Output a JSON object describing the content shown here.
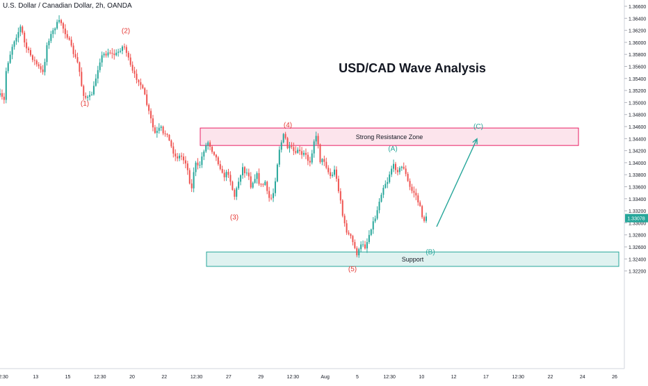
{
  "header": {
    "symbol": "U.S. Dollar / Canadian Dollar, 2h, OANDA"
  },
  "colors": {
    "up": "#26a69a",
    "down": "#ef5350",
    "resistance": "#e91e63",
    "support": "#26a69a",
    "price_tag": "#26a69a",
    "wave_red": "#e53935",
    "wave_green": "#26a69a"
  },
  "chart_data": {
    "type": "candlestick",
    "title": "USD/CAD Wave Analysis",
    "ylim": [
      1.3215,
      1.3668
    ],
    "y_ticks": [
      "1.36600",
      "1.36400",
      "1.36200",
      "1.36000",
      "1.35800",
      "1.35600",
      "1.35400",
      "1.35200",
      "1.35000",
      "1.34800",
      "1.34600",
      "1.34400",
      "1.34200",
      "1.34000",
      "1.33800",
      "1.33600",
      "1.33400",
      "1.33200",
      "1.33000",
      "1.32800",
      "1.32600",
      "1.32400",
      "1.32200"
    ],
    "x_ticks": [
      "2:30",
      "13",
      "15",
      "12:30",
      "20",
      "22",
      "12:30",
      "27",
      "29",
      "12:30",
      "Aug",
      "5",
      "12:30",
      "10",
      "12",
      "17",
      "12:30",
      "22",
      "24",
      "26"
    ],
    "last_price": "1.33078",
    "price_path": [
      [
        0,
        1.3512
      ],
      [
        6,
        1.3503
      ],
      [
        9,
        1.3556
      ],
      [
        14,
        1.3578
      ],
      [
        19,
        1.36
      ],
      [
        25,
        1.3614
      ],
      [
        30,
        1.3627
      ],
      [
        36,
        1.3595
      ],
      [
        42,
        1.3582
      ],
      [
        49,
        1.357
      ],
      [
        55,
        1.356
      ],
      [
        62,
        1.3548
      ],
      [
        68,
        1.36
      ],
      [
        75,
        1.3616
      ],
      [
        81,
        1.363
      ],
      [
        87,
        1.3636
      ],
      [
        92,
        1.362
      ],
      [
        97,
        1.361
      ],
      [
        103,
        1.359
      ],
      [
        108,
        1.3575
      ],
      [
        113,
        1.3562
      ],
      [
        117,
        1.353
      ],
      [
        121,
        1.351
      ],
      [
        125,
        1.3507
      ],
      [
        130,
        1.351
      ],
      [
        134,
        1.352
      ],
      [
        138,
        1.3542
      ],
      [
        143,
        1.3568
      ],
      [
        148,
        1.358
      ],
      [
        153,
        1.3581
      ],
      [
        157,
        1.3586
      ],
      [
        162,
        1.3579
      ],
      [
        168,
        1.3581
      ],
      [
        173,
        1.3589
      ],
      [
        178,
        1.3595
      ],
      [
        182,
        1.3584
      ],
      [
        186,
        1.3566
      ],
      [
        191,
        1.355
      ],
      [
        195,
        1.3542
      ],
      [
        199,
        1.3538
      ],
      [
        203,
        1.3528
      ],
      [
        208,
        1.3512
      ],
      [
        213,
        1.3488
      ],
      [
        218,
        1.3468
      ],
      [
        222,
        1.3448
      ],
      [
        227,
        1.3452
      ],
      [
        231,
        1.346
      ],
      [
        235,
        1.3445
      ],
      [
        240,
        1.3452
      ],
      [
        244,
        1.3433
      ],
      [
        248,
        1.3422
      ],
      [
        252,
        1.341
      ],
      [
        256,
        1.3409
      ],
      [
        260,
        1.3412
      ],
      [
        264,
        1.3405
      ],
      [
        268,
        1.34
      ],
      [
        272,
        1.3372
      ],
      [
        276,
        1.3355
      ],
      [
        280,
        1.3402
      ],
      [
        284,
        1.3392
      ],
      [
        288,
        1.3398
      ],
      [
        292,
        1.3418
      ],
      [
        296,
        1.3428
      ],
      [
        300,
        1.3436
      ],
      [
        304,
        1.3422
      ],
      [
        308,
        1.3416
      ],
      [
        312,
        1.3405
      ],
      [
        317,
        1.3392
      ],
      [
        321,
        1.3375
      ],
      [
        325,
        1.3382
      ],
      [
        329,
        1.3383
      ],
      [
        333,
        1.3362
      ],
      [
        337,
        1.3343
      ],
      [
        341,
        1.3359
      ],
      [
        345,
        1.3378
      ],
      [
        349,
        1.3392
      ],
      [
        353,
        1.3382
      ],
      [
        357,
        1.3385
      ],
      [
        361,
        1.336
      ],
      [
        365,
        1.3372
      ],
      [
        369,
        1.3382
      ],
      [
        373,
        1.3365
      ],
      [
        377,
        1.336
      ],
      [
        381,
        1.337
      ],
      [
        385,
        1.3345
      ],
      [
        389,
        1.3338
      ],
      [
        393,
        1.335
      ],
      [
        397,
        1.338
      ],
      [
        401,
        1.342
      ],
      [
        405,
        1.3435
      ],
      [
        409,
        1.345
      ],
      [
        413,
        1.3425
      ],
      [
        417,
        1.3424
      ],
      [
        421,
        1.3422
      ],
      [
        425,
        1.3412
      ],
      [
        429,
        1.3425
      ],
      [
        433,
        1.341
      ],
      [
        437,
        1.3415
      ],
      [
        441,
        1.341
      ],
      [
        445,
        1.3398
      ],
      [
        449,
        1.342
      ],
      [
        453,
        1.3445
      ],
      [
        457,
        1.3438
      ],
      [
        461,
        1.3398
      ],
      [
        465,
        1.3408
      ],
      [
        469,
        1.3395
      ],
      [
        473,
        1.3382
      ],
      [
        477,
        1.3375
      ],
      [
        481,
        1.339
      ],
      [
        485,
        1.3365
      ],
      [
        489,
        1.3345
      ],
      [
        493,
        1.331
      ],
      [
        497,
        1.329
      ],
      [
        501,
        1.3281
      ],
      [
        505,
        1.3275
      ],
      [
        509,
        1.3262
      ],
      [
        513,
        1.3248
      ],
      [
        517,
        1.3255
      ],
      [
        521,
        1.3268
      ],
      [
        525,
        1.326
      ],
      [
        529,
        1.3272
      ],
      [
        533,
        1.329
      ],
      [
        537,
        1.3302
      ],
      [
        541,
        1.3312
      ],
      [
        545,
        1.3335
      ],
      [
        549,
        1.3352
      ],
      [
        553,
        1.3365
      ],
      [
        557,
        1.3368
      ],
      [
        561,
        1.3385
      ],
      [
        565,
        1.3396
      ],
      [
        569,
        1.3391
      ],
      [
        573,
        1.3386
      ],
      [
        577,
        1.3393
      ],
      [
        581,
        1.3392
      ],
      [
        585,
        1.3374
      ],
      [
        589,
        1.336
      ],
      [
        593,
        1.3352
      ],
      [
        597,
        1.335
      ],
      [
        601,
        1.3336
      ],
      [
        605,
        1.3322
      ],
      [
        609,
        1.3303
      ],
      [
        613,
        1.3308
      ]
    ],
    "candle_count": 210,
    "annotations": [
      {
        "label": "(1)",
        "x": 122,
        "y": 1.34946,
        "color": "wave_red"
      },
      {
        "label": "(2)",
        "x": 181,
        "y": 1.36156,
        "color": "wave_red"
      },
      {
        "label": "(3)",
        "x": 337,
        "y": 1.33056,
        "color": "wave_red"
      },
      {
        "label": "(4)",
        "x": 414,
        "y": 1.34586,
        "color": "wave_red"
      },
      {
        "label": "(5)",
        "x": 507,
        "y": 1.32196,
        "color": "wave_red"
      },
      {
        "label": "(A)",
        "x": 565,
        "y": 1.34196,
        "color": "wave_green"
      },
      {
        "label": "(B)",
        "x": 619,
        "y": 1.32476,
        "color": "wave_green"
      },
      {
        "label": "(C)",
        "x": 688,
        "y": 1.34566,
        "color": "wave_green"
      }
    ],
    "zones": [
      {
        "label": "Strong Resistance Zone",
        "y_top": 1.34576,
        "y_bottom": 1.34286,
        "x1": 288,
        "x2": 832,
        "color": "resistance"
      },
      {
        "label": "Support",
        "y_top": 1.32516,
        "y_bottom": 1.32276,
        "x1": 297,
        "x2": 890,
        "color": "support"
      }
    ],
    "projection": {
      "from": [
        628,
        1.32936
      ],
      "to": [
        686,
        1.34396
      ]
    }
  }
}
